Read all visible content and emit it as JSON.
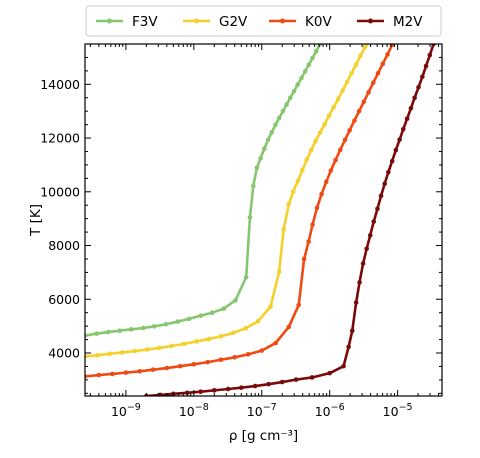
{
  "chart_data": {
    "type": "line",
    "title": "",
    "xlabel": "ρ [g cm⁻³]",
    "ylabel": "T [K]",
    "xscale": "log",
    "xlim": [
      2.5e-10,
      4.5e-05
    ],
    "ylim": [
      2400,
      15500
    ],
    "x_ticks": [
      {
        "value": 1e-09,
        "base": "10",
        "exp": "−9"
      },
      {
        "value": 1e-08,
        "base": "10",
        "exp": "−8"
      },
      {
        "value": 1e-07,
        "base": "10",
        "exp": "−7"
      },
      {
        "value": 1e-06,
        "base": "10",
        "exp": "−6"
      },
      {
        "value": 1e-05,
        "base": "10",
        "exp": "−5"
      }
    ],
    "y_ticks": [
      4000,
      6000,
      8000,
      10000,
      12000,
      14000
    ],
    "grid": false,
    "legend_position": "top-outside",
    "series": [
      {
        "name": "F3V",
        "color": "#86c66f",
        "points": [
          [
            2.5e-10,
            4650
          ],
          [
            3.7e-10,
            4720
          ],
          [
            5.5e-10,
            4780
          ],
          [
            8.1e-10,
            4830
          ],
          [
            1.2e-09,
            4880
          ],
          [
            1.8e-09,
            4930
          ],
          [
            2.6e-09,
            4990
          ],
          [
            3.9e-09,
            5070
          ],
          [
            5.8e-09,
            5170
          ],
          [
            8.5e-09,
            5270
          ],
          [
            1.26e-08,
            5390
          ],
          [
            1.86e-08,
            5500
          ],
          [
            2.75e-08,
            5650
          ],
          [
            4.1e-08,
            5960
          ],
          [
            5.9e-08,
            6820
          ],
          [
            6.7e-08,
            9050
          ],
          [
            7.5e-08,
            10220
          ],
          [
            8.5e-08,
            10900
          ],
          [
            9.6e-08,
            11250
          ],
          [
            1.09e-07,
            11600
          ],
          [
            1.24e-07,
            11940
          ],
          [
            1.4e-07,
            12210
          ],
          [
            1.59e-07,
            12490
          ],
          [
            1.8e-07,
            12740
          ],
          [
            2.05e-07,
            13000
          ],
          [
            2.32e-07,
            13250
          ],
          [
            2.63e-07,
            13500
          ],
          [
            2.98e-07,
            13740
          ],
          [
            3.38e-07,
            13990
          ],
          [
            3.83e-07,
            14230
          ],
          [
            4.35e-07,
            14480
          ],
          [
            4.93e-07,
            14730
          ],
          [
            5.58e-07,
            14980
          ],
          [
            6.33e-07,
            15230
          ],
          [
            7.2e-07,
            15500
          ]
        ]
      },
      {
        "name": "G2V",
        "color": "#f5d02a",
        "points": [
          [
            2.5e-10,
            3870
          ],
          [
            3.8e-10,
            3920
          ],
          [
            5.8e-10,
            3970
          ],
          [
            8.8e-10,
            4020
          ],
          [
            1.35e-09,
            4070
          ],
          [
            2.05e-09,
            4130
          ],
          [
            3.1e-09,
            4190
          ],
          [
            4.7e-09,
            4260
          ],
          [
            7.2e-09,
            4340
          ],
          [
            1.1e-08,
            4430
          ],
          [
            1.65e-08,
            4520
          ],
          [
            2.5e-08,
            4620
          ],
          [
            3.8e-08,
            4750
          ],
          [
            5.8e-08,
            4920
          ],
          [
            8.8e-08,
            5180
          ],
          [
            1.35e-07,
            5730
          ],
          [
            1.8e-07,
            7020
          ],
          [
            2.1e-07,
            8600
          ],
          [
            2.5e-07,
            9540
          ],
          [
            2.9e-07,
            10000
          ],
          [
            3.4e-07,
            10400
          ],
          [
            3.95e-07,
            10800
          ],
          [
            4.6e-07,
            11200
          ],
          [
            5.35e-07,
            11550
          ],
          [
            6.2e-07,
            11890
          ],
          [
            7.2e-07,
            12200
          ],
          [
            8.4e-07,
            12510
          ],
          [
            9.8e-07,
            12830
          ],
          [
            1.14e-06,
            13140
          ],
          [
            1.33e-06,
            13450
          ],
          [
            1.55e-06,
            13770
          ],
          [
            1.8e-06,
            14090
          ],
          [
            2.1e-06,
            14410
          ],
          [
            2.44e-06,
            14730
          ],
          [
            2.84e-06,
            15060
          ],
          [
            3.3e-06,
            15380
          ],
          [
            3.5e-06,
            15500
          ]
        ]
      },
      {
        "name": "K0V",
        "color": "#f04a14",
        "points": [
          [
            2.5e-10,
            3130
          ],
          [
            4e-10,
            3180
          ],
          [
            6.3e-10,
            3220
          ],
          [
            1e-09,
            3270
          ],
          [
            1.6e-09,
            3320
          ],
          [
            2.5e-09,
            3380
          ],
          [
            4e-09,
            3440
          ],
          [
            6.3e-09,
            3510
          ],
          [
            1e-08,
            3580
          ],
          [
            1.6e-08,
            3660
          ],
          [
            2.5e-08,
            3750
          ],
          [
            4e-08,
            3840
          ],
          [
            6.3e-08,
            3950
          ],
          [
            1e-07,
            4090
          ],
          [
            1.6e-07,
            4370
          ],
          [
            2.5e-07,
            4970
          ],
          [
            3.5e-07,
            5790
          ],
          [
            4.2e-07,
            7500
          ],
          [
            4.9e-07,
            8150
          ],
          [
            5.6e-07,
            8780
          ],
          [
            6.5e-07,
            9400
          ],
          [
            7.6e-07,
            9920
          ],
          [
            8.9e-07,
            10370
          ],
          [
            1.04e-06,
            10790
          ],
          [
            1.22e-06,
            11180
          ],
          [
            1.43e-06,
            11560
          ],
          [
            1.68e-06,
            11930
          ],
          [
            1.97e-06,
            12290
          ],
          [
            2.31e-06,
            12650
          ],
          [
            2.71e-06,
            13000
          ],
          [
            3.18e-06,
            13350
          ],
          [
            3.73e-06,
            13700
          ],
          [
            4.38e-06,
            14060
          ],
          [
            5.14e-06,
            14410
          ],
          [
            6.04e-06,
            14760
          ],
          [
            7.1e-06,
            15110
          ],
          [
            8.3e-06,
            15470
          ]
        ]
      },
      {
        "name": "M2V",
        "color": "#780a0a",
        "points": [
          [
            2e-09,
            2400
          ],
          [
            3.2e-09,
            2440
          ],
          [
            5e-09,
            2480
          ],
          [
            8e-09,
            2520
          ],
          [
            1.26e-08,
            2560
          ],
          [
            2e-08,
            2610
          ],
          [
            3.2e-08,
            2660
          ],
          [
            5e-08,
            2710
          ],
          [
            8e-08,
            2770
          ],
          [
            1.26e-07,
            2840
          ],
          [
            2e-07,
            2920
          ],
          [
            3.2e-07,
            3010
          ],
          [
            5.5e-07,
            3090
          ],
          [
            1e-06,
            3250
          ],
          [
            1.6e-06,
            3510
          ],
          [
            1.9e-06,
            4230
          ],
          [
            2.15e-06,
            4830
          ],
          [
            2.45e-06,
            5880
          ],
          [
            2.75e-06,
            6630
          ],
          [
            3.1e-06,
            7330
          ],
          [
            3.5e-06,
            7880
          ],
          [
            3.95e-06,
            8380
          ],
          [
            4.45e-06,
            8890
          ],
          [
            5.05e-06,
            9370
          ],
          [
            5.7e-06,
            9850
          ],
          [
            6.45e-06,
            10300
          ],
          [
            7.3e-06,
            10730
          ],
          [
            8.3e-06,
            11140
          ],
          [
            9.4e-06,
            11550
          ],
          [
            1.07e-05,
            11940
          ],
          [
            1.21e-05,
            12330
          ],
          [
            1.38e-05,
            12720
          ],
          [
            1.57e-05,
            13110
          ],
          [
            1.78e-05,
            13500
          ],
          [
            2.03e-05,
            13890
          ],
          [
            2.31e-05,
            14280
          ],
          [
            2.62e-05,
            14680
          ],
          [
            2.98e-05,
            15090
          ],
          [
            3.38e-05,
            15500
          ]
        ]
      }
    ]
  }
}
